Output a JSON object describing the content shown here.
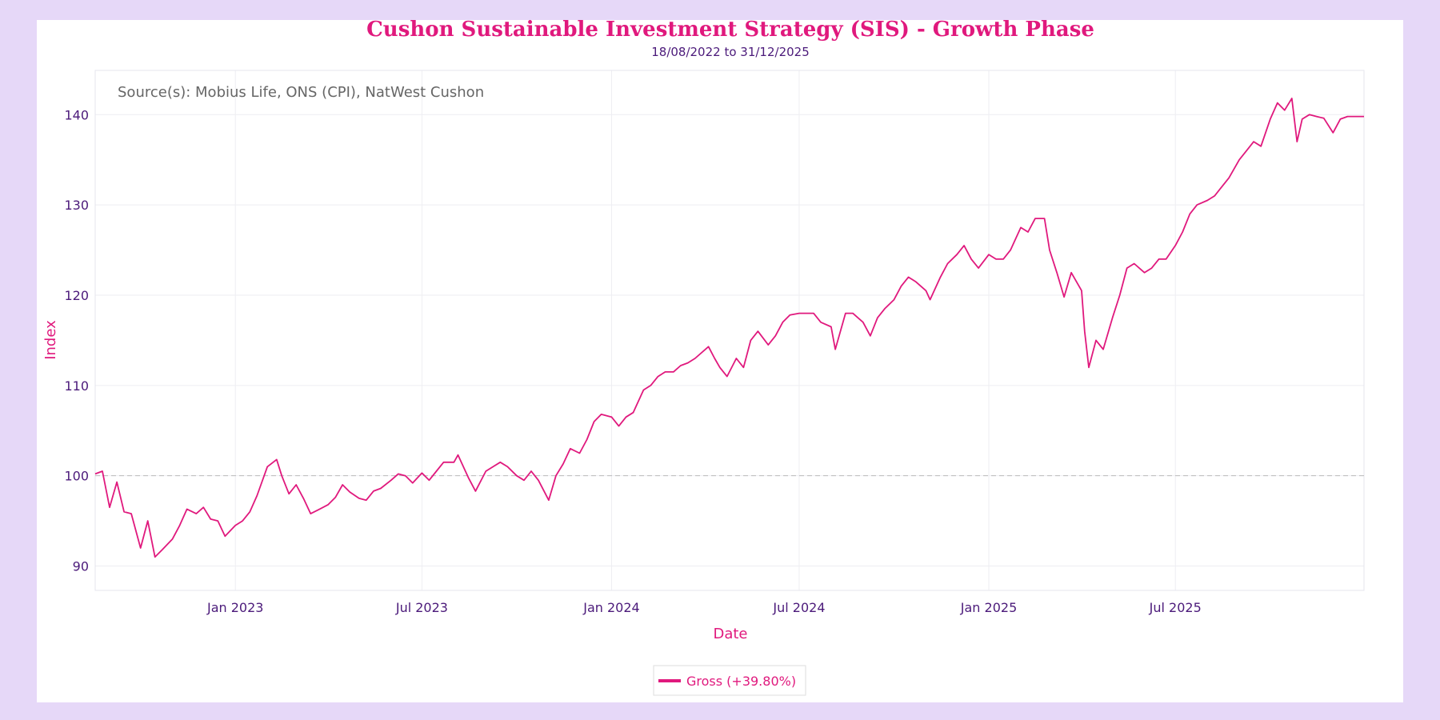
{
  "chart_data": {
    "type": "line",
    "title": "Cushon Sustainable Investment Strategy (SIS) - Growth Phase",
    "subtitle": "18/08/2022 to 31/12/2025",
    "annotation": "Source(s): Mobius Life, ONS (CPI), NatWest Cushon",
    "xlabel": "Date",
    "ylabel": "Index",
    "xlim": [
      "2022-08-18",
      "2025-12-31"
    ],
    "ylim": [
      87.3,
      144.9
    ],
    "x_ticks": [
      {
        "date": "2023-01-01",
        "label": "Jan 2023"
      },
      {
        "date": "2023-07-01",
        "label": "Jul 2023"
      },
      {
        "date": "2024-01-01",
        "label": "Jan 2024"
      },
      {
        "date": "2024-07-01",
        "label": "Jul 2024"
      },
      {
        "date": "2025-01-01",
        "label": "Jan 2025"
      },
      {
        "date": "2025-07-01",
        "label": "Jul 2025"
      }
    ],
    "y_ticks": [
      90,
      100,
      110,
      120,
      130,
      140
    ],
    "grid": true,
    "reference_line": 100,
    "legend_position": "bottom-center",
    "colors": {
      "line": "#e0197d",
      "axis_text": "#4b1a7a",
      "frame": "#e6d8f8"
    },
    "series": [
      {
        "name": "Gross (+39.80%)",
        "points": [
          [
            "2022-08-18",
            100.2
          ],
          [
            "2022-08-25",
            100.5
          ],
          [
            "2022-09-01",
            96.5
          ],
          [
            "2022-09-08",
            99.3
          ],
          [
            "2022-09-15",
            96
          ],
          [
            "2022-09-22",
            95.8
          ],
          [
            "2022-10-01",
            92
          ],
          [
            "2022-10-08",
            95
          ],
          [
            "2022-10-15",
            91
          ],
          [
            "2022-10-22",
            91.8
          ],
          [
            "2022-11-01",
            93
          ],
          [
            "2022-11-08",
            94.5
          ],
          [
            "2022-11-15",
            96.3
          ],
          [
            "2022-11-24",
            95.8
          ],
          [
            "2022-12-01",
            96.5
          ],
          [
            "2022-12-08",
            95.2
          ],
          [
            "2022-12-15",
            95
          ],
          [
            "2022-12-22",
            93.3
          ],
          [
            "2023-01-01",
            94.5
          ],
          [
            "2023-01-08",
            95
          ],
          [
            "2023-01-15",
            96
          ],
          [
            "2023-01-22",
            97.8
          ],
          [
            "2023-02-01",
            101
          ],
          [
            "2023-02-10",
            101.8
          ],
          [
            "2023-02-15",
            100
          ],
          [
            "2023-02-22",
            98
          ],
          [
            "2023-03-01",
            99
          ],
          [
            "2023-03-08",
            97.5
          ],
          [
            "2023-03-15",
            95.8
          ],
          [
            "2023-03-22",
            96.2
          ],
          [
            "2023-04-01",
            96.8
          ],
          [
            "2023-04-08",
            97.6
          ],
          [
            "2023-04-15",
            99
          ],
          [
            "2023-04-22",
            98.2
          ],
          [
            "2023-05-01",
            97.5
          ],
          [
            "2023-05-08",
            97.3
          ],
          [
            "2023-05-15",
            98.3
          ],
          [
            "2023-05-22",
            98.6
          ],
          [
            "2023-06-01",
            99.5
          ],
          [
            "2023-06-08",
            100.2
          ],
          [
            "2023-06-15",
            100
          ],
          [
            "2023-06-22",
            99.2
          ],
          [
            "2023-07-01",
            100.3
          ],
          [
            "2023-07-08",
            99.5
          ],
          [
            "2023-07-15",
            100.5
          ],
          [
            "2023-07-22",
            101.5
          ],
          [
            "2023-08-01",
            101.5
          ],
          [
            "2023-08-05",
            102.3
          ],
          [
            "2023-08-15",
            99.8
          ],
          [
            "2023-08-22",
            98.3
          ],
          [
            "2023-09-01",
            100.5
          ],
          [
            "2023-09-08",
            101
          ],
          [
            "2023-09-15",
            101.5
          ],
          [
            "2023-09-22",
            101
          ],
          [
            "2023-10-01",
            100
          ],
          [
            "2023-10-08",
            99.5
          ],
          [
            "2023-10-15",
            100.5
          ],
          [
            "2023-10-22",
            99.5
          ],
          [
            "2023-11-01",
            97.3
          ],
          [
            "2023-11-08",
            100
          ],
          [
            "2023-11-15",
            101.3
          ],
          [
            "2023-11-22",
            103
          ],
          [
            "2023-12-01",
            102.5
          ],
          [
            "2023-12-08",
            104
          ],
          [
            "2023-12-15",
            106
          ],
          [
            "2023-12-22",
            106.8
          ],
          [
            "2024-01-01",
            106.5
          ],
          [
            "2024-01-08",
            105.5
          ],
          [
            "2024-01-15",
            106.5
          ],
          [
            "2024-01-22",
            107
          ],
          [
            "2024-02-01",
            109.5
          ],
          [
            "2024-02-08",
            110
          ],
          [
            "2024-02-15",
            111
          ],
          [
            "2024-02-22",
            111.5
          ],
          [
            "2024-03-01",
            111.5
          ],
          [
            "2024-03-08",
            112.2
          ],
          [
            "2024-03-15",
            112.5
          ],
          [
            "2024-03-22",
            113
          ],
          [
            "2024-04-04",
            114.3
          ],
          [
            "2024-04-10",
            113
          ],
          [
            "2024-04-15",
            112
          ],
          [
            "2024-04-22",
            111
          ],
          [
            "2024-05-01",
            113
          ],
          [
            "2024-05-08",
            112
          ],
          [
            "2024-05-15",
            115
          ],
          [
            "2024-05-22",
            116
          ],
          [
            "2024-06-01",
            114.5
          ],
          [
            "2024-06-08",
            115.5
          ],
          [
            "2024-06-15",
            117
          ],
          [
            "2024-06-22",
            117.8
          ],
          [
            "2024-07-01",
            118
          ],
          [
            "2024-07-08",
            118
          ],
          [
            "2024-07-15",
            118
          ],
          [
            "2024-07-22",
            117
          ],
          [
            "2024-08-01",
            116.5
          ],
          [
            "2024-08-05",
            114
          ],
          [
            "2024-08-15",
            118
          ],
          [
            "2024-08-22",
            118
          ],
          [
            "2024-09-01",
            117
          ],
          [
            "2024-09-08",
            115.5
          ],
          [
            "2024-09-15",
            117.5
          ],
          [
            "2024-09-22",
            118.5
          ],
          [
            "2024-10-01",
            119.5
          ],
          [
            "2024-10-08",
            121
          ],
          [
            "2024-10-15",
            122
          ],
          [
            "2024-10-22",
            121.5
          ],
          [
            "2024-11-01",
            120.5
          ],
          [
            "2024-11-05",
            119.5
          ],
          [
            "2024-11-15",
            122
          ],
          [
            "2024-11-22",
            123.5
          ],
          [
            "2024-12-01",
            124.5
          ],
          [
            "2024-12-08",
            125.5
          ],
          [
            "2024-12-15",
            124
          ],
          [
            "2024-12-22",
            123
          ],
          [
            "2025-01-01",
            124.5
          ],
          [
            "2025-01-08",
            124
          ],
          [
            "2025-01-15",
            124
          ],
          [
            "2025-01-22",
            125
          ],
          [
            "2025-02-01",
            127.5
          ],
          [
            "2025-02-08",
            127
          ],
          [
            "2025-02-15",
            128.5
          ],
          [
            "2025-02-24",
            128.5
          ],
          [
            "2025-03-01",
            125
          ],
          [
            "2025-03-08",
            122.5
          ],
          [
            "2025-03-15",
            119.8
          ],
          [
            "2025-03-22",
            122.5
          ],
          [
            "2025-04-01",
            120.5
          ],
          [
            "2025-04-04",
            116
          ],
          [
            "2025-04-08",
            112
          ],
          [
            "2025-04-15",
            115
          ],
          [
            "2025-04-22",
            114
          ],
          [
            "2025-05-01",
            117.5
          ],
          [
            "2025-05-08",
            120
          ],
          [
            "2025-05-15",
            123
          ],
          [
            "2025-05-22",
            123.5
          ],
          [
            "2025-06-01",
            122.5
          ],
          [
            "2025-06-08",
            123
          ],
          [
            "2025-06-15",
            124
          ],
          [
            "2025-06-22",
            124
          ],
          [
            "2025-07-01",
            125.5
          ],
          [
            "2025-07-08",
            127
          ],
          [
            "2025-07-15",
            129
          ],
          [
            "2025-07-22",
            130
          ],
          [
            "2025-08-01",
            130.5
          ],
          [
            "2025-08-08",
            131
          ],
          [
            "2025-08-15",
            132
          ],
          [
            "2025-08-22",
            133
          ],
          [
            "2025-09-01",
            135
          ],
          [
            "2025-09-08",
            136
          ],
          [
            "2025-09-15",
            137
          ],
          [
            "2025-09-22",
            136.5
          ],
          [
            "2025-10-01",
            139.5
          ],
          [
            "2025-10-08",
            141.3
          ],
          [
            "2025-10-15",
            140.5
          ],
          [
            "2025-10-22",
            141.8
          ],
          [
            "2025-10-27",
            137
          ],
          [
            "2025-11-01",
            139.5
          ],
          [
            "2025-11-08",
            140
          ],
          [
            "2025-11-15",
            139.8
          ],
          [
            "2025-11-22",
            139.6
          ],
          [
            "2025-12-01",
            138
          ],
          [
            "2025-12-08",
            139.5
          ],
          [
            "2025-12-15",
            139.8
          ],
          [
            "2025-12-22",
            139.8
          ],
          [
            "2025-12-31",
            139.8
          ]
        ]
      }
    ]
  }
}
